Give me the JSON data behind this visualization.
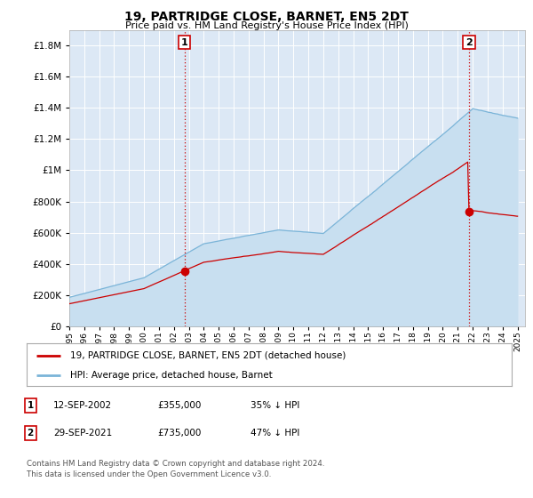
{
  "title": "19, PARTRIDGE CLOSE, BARNET, EN5 2DT",
  "subtitle": "Price paid vs. HM Land Registry's House Price Index (HPI)",
  "ytick_values": [
    0,
    200000,
    400000,
    600000,
    800000,
    1000000,
    1200000,
    1400000,
    1600000,
    1800000
  ],
  "ylim": [
    0,
    1900000
  ],
  "xlim_start": 1995.0,
  "xlim_end": 2025.5,
  "sale1_year": 2002.706,
  "sale1_price": 355000,
  "sale1_label": "1",
  "sale2_year": 2021.747,
  "sale2_price": 735000,
  "sale2_label": "2",
  "hpi_color": "#7ab4d8",
  "hpi_fill_color": "#c8dff0",
  "price_color": "#cc0000",
  "vline_color": "#cc0000",
  "background_color": "#dce8f5",
  "grid_color": "#ffffff",
  "legend_label_price": "19, PARTRIDGE CLOSE, BARNET, EN5 2DT (detached house)",
  "legend_label_hpi": "HPI: Average price, detached house, Barnet",
  "footnote1": "Contains HM Land Registry data © Crown copyright and database right 2024.",
  "footnote2": "This data is licensed under the Open Government Licence v3.0.",
  "table_row1": [
    "1",
    "12-SEP-2002",
    "£355,000",
    "35% ↓ HPI"
  ],
  "table_row2": [
    "2",
    "29-SEP-2021",
    "£735,000",
    "47% ↓ HPI"
  ]
}
